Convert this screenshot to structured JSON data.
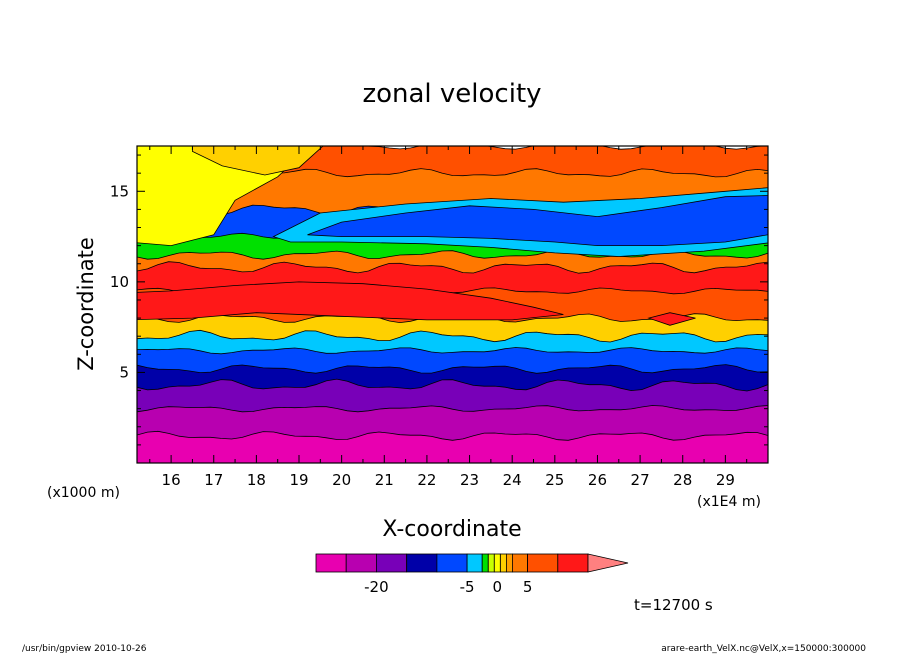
{
  "chart_data": {
    "type": "heatmap",
    "title": "zonal velocity",
    "xlabel": "X-coordinate",
    "ylabel": "Z-coordinate",
    "x_unit_left": "(x1000 m)",
    "x_unit_right": "(x1E4 m)",
    "xlim": [
      15.2,
      30.0
    ],
    "ylim": [
      0.0,
      17.5
    ],
    "x_ticks": [
      "16",
      "17",
      "18",
      "19",
      "20",
      "21",
      "22",
      "23",
      "24",
      "25",
      "26",
      "27",
      "28",
      "29"
    ],
    "y_ticks": [
      "5",
      "10",
      "15"
    ],
    "time_label": "t=12700 s",
    "colorbar": {
      "tick_labels": [
        "-20",
        "-5",
        "0",
        "5"
      ],
      "tick_values": [
        -20,
        -5,
        0,
        5
      ],
      "levels": [
        -30,
        -25,
        -20,
        -15,
        -10,
        -5,
        -2.5,
        -1.5,
        -0.5,
        0.5,
        1.5,
        2.5,
        5,
        10,
        15,
        20
      ],
      "colors": [
        "#e800b0",
        "#b800b0",
        "#7800b8",
        "#0000a8",
        "#0048ff",
        "#00c8ff",
        "#00e000",
        "#c8ff00",
        "#ffff00",
        "#ffd000",
        "#ffa000",
        "#ff7800",
        "#ff5000",
        "#ff1818",
        "#ff8080"
      ]
    },
    "bands": [
      {
        "z_top": 1.5,
        "value": -27
      },
      {
        "z_top": 3.0,
        "value": -22
      },
      {
        "z_top": 4.3,
        "value": -17
      },
      {
        "z_top": 5.2,
        "value": -12
      },
      {
        "z_top": 6.2,
        "value": -8
      },
      {
        "z_top": 7.0,
        "value": -4
      },
      {
        "z_top": 8.0,
        "value": 1
      },
      {
        "z_top": 9.5,
        "value": 7
      },
      {
        "z_top": 10.8,
        "value": 12
      },
      {
        "z_top": 11.5,
        "value": 3
      },
      {
        "z_top": 12.5,
        "value": -2
      },
      {
        "z_top": 14.0,
        "value": -9
      },
      {
        "z_top": 16.0,
        "value": 4
      },
      {
        "z_top": 17.5,
        "value": 8
      }
    ]
  },
  "footer": {
    "left": "/usr/bin/gpview   2010-10-26",
    "right": "arare-earth_VelX.nc@VelX,x=150000:300000"
  }
}
